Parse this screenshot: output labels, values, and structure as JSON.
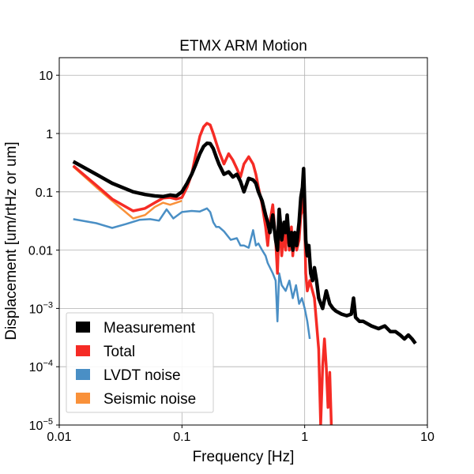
{
  "chart_data": {
    "type": "line",
    "title": "ETMX ARM Motion",
    "xlabel": "Frequency [Hz]",
    "ylabel": "Displacement [um/rtHz or um]",
    "xscale": "log",
    "yscale": "log",
    "xlim": [
      0.01,
      10
    ],
    "ylim": [
      1e-05,
      20
    ],
    "grid": true,
    "legend_position": "lower-left",
    "x_ticks": [
      {
        "value": 0.01,
        "label": "0.01"
      },
      {
        "value": 0.1,
        "label": "0.1"
      },
      {
        "value": 1,
        "label": "1"
      },
      {
        "value": 10,
        "label": "10"
      }
    ],
    "y_ticks": [
      {
        "value": 1e-05,
        "label": "10",
        "exp": "−5"
      },
      {
        "value": 0.0001,
        "label": "10",
        "exp": "−4"
      },
      {
        "value": 0.001,
        "label": "10",
        "exp": "−3"
      },
      {
        "value": 0.01,
        "label": "0.01"
      },
      {
        "value": 0.1,
        "label": "0.1"
      },
      {
        "value": 1,
        "label": "1"
      },
      {
        "value": 10,
        "label": "10"
      }
    ],
    "series": [
      {
        "name": "Measurement",
        "color": "#000000",
        "width": 4.5,
        "x": [
          0.013,
          0.02,
          0.027,
          0.04,
          0.05,
          0.06,
          0.07,
          0.08,
          0.09,
          0.1,
          0.11,
          0.12,
          0.13,
          0.14,
          0.15,
          0.16,
          0.17,
          0.18,
          0.19,
          0.2,
          0.22,
          0.24,
          0.26,
          0.28,
          0.3,
          0.32,
          0.35,
          0.38,
          0.4,
          0.42,
          0.45,
          0.48,
          0.5,
          0.52,
          0.55,
          0.58,
          0.6,
          0.62,
          0.65,
          0.68,
          0.7,
          0.72,
          0.75,
          0.78,
          0.8,
          0.83,
          0.86,
          0.9,
          0.93,
          0.96,
          0.98,
          1.0,
          1.02,
          1.05,
          1.08,
          1.12,
          1.16,
          1.2,
          1.25,
          1.3,
          1.4,
          1.5,
          1.6,
          1.7,
          1.8,
          2.0,
          2.2,
          2.4,
          2.5,
          2.6,
          2.8,
          3.0,
          3.5,
          4.0,
          4.5,
          5.0,
          5.5,
          6.0,
          6.5,
          7.0,
          7.5,
          8.0
        ],
        "y": [
          0.33,
          0.2,
          0.14,
          0.1,
          0.09,
          0.085,
          0.083,
          0.088,
          0.085,
          0.1,
          0.14,
          0.2,
          0.3,
          0.45,
          0.6,
          0.68,
          0.67,
          0.55,
          0.4,
          0.3,
          0.2,
          0.22,
          0.18,
          0.2,
          0.15,
          0.1,
          0.17,
          0.16,
          0.14,
          0.1,
          0.07,
          0.04,
          0.03,
          0.02,
          0.04,
          0.015,
          0.01,
          0.05,
          0.015,
          0.03,
          0.02,
          0.04,
          0.012,
          0.02,
          0.01,
          0.02,
          0.012,
          0.03,
          0.08,
          0.12,
          0.25,
          0.06,
          0.015,
          0.008,
          0.012,
          0.004,
          0.003,
          0.005,
          0.003,
          0.0015,
          0.001,
          0.002,
          0.0012,
          0.001,
          0.0009,
          0.0008,
          0.00075,
          0.0008,
          0.0015,
          0.0007,
          0.0006,
          0.0006,
          0.0005,
          0.00045,
          0.0005,
          0.0004,
          0.0004,
          0.00035,
          0.0003,
          0.00035,
          0.0003,
          0.00025
        ]
      },
      {
        "name": "Total",
        "color": "#f52b25",
        "width": 3.5,
        "x": [
          0.013,
          0.02,
          0.027,
          0.04,
          0.05,
          0.06,
          0.07,
          0.08,
          0.09,
          0.1,
          0.11,
          0.12,
          0.13,
          0.14,
          0.15,
          0.16,
          0.17,
          0.18,
          0.19,
          0.2,
          0.22,
          0.24,
          0.26,
          0.28,
          0.3,
          0.32,
          0.35,
          0.38,
          0.4,
          0.42,
          0.45,
          0.48,
          0.5,
          0.52,
          0.55,
          0.58,
          0.6,
          0.62,
          0.65,
          0.68,
          0.7,
          0.72,
          0.75,
          0.78,
          0.8,
          0.83,
          0.86,
          0.9,
          0.93,
          0.96,
          0.98,
          1.0,
          1.02,
          1.05,
          1.1,
          1.2,
          1.3,
          1.35,
          1.4,
          1.45,
          1.5,
          1.55,
          1.6,
          1.65
        ],
        "y": [
          0.28,
          0.13,
          0.075,
          0.047,
          0.052,
          0.065,
          0.078,
          0.08,
          0.075,
          0.08,
          0.12,
          0.2,
          0.45,
          0.9,
          1.3,
          1.5,
          1.4,
          1.0,
          0.7,
          0.5,
          0.3,
          0.45,
          0.35,
          0.25,
          0.18,
          0.3,
          0.4,
          0.3,
          0.2,
          0.12,
          0.06,
          0.025,
          0.012,
          0.03,
          0.06,
          0.015,
          0.004,
          0.03,
          0.008,
          0.02,
          0.01,
          0.03,
          0.01,
          0.025,
          0.008,
          0.02,
          0.01,
          0.015,
          0.04,
          0.05,
          0.08,
          0.03,
          0.004,
          0.002,
          0.003,
          0.0015,
          0.0002,
          1e-05,
          0.0001,
          0.0003,
          0.0001,
          2e-05,
          8e-05,
          1e-05
        ]
      },
      {
        "name": "LVDT noise",
        "color": "#4a8fc5",
        "width": 2.5,
        "x": [
          0.013,
          0.02,
          0.027,
          0.035,
          0.045,
          0.055,
          0.065,
          0.075,
          0.085,
          0.1,
          0.12,
          0.14,
          0.16,
          0.17,
          0.18,
          0.19,
          0.2,
          0.22,
          0.25,
          0.28,
          0.3,
          0.32,
          0.35,
          0.38,
          0.4,
          0.42,
          0.45,
          0.48,
          0.5,
          0.55,
          0.58,
          0.6,
          0.62,
          0.65,
          0.7,
          0.75,
          0.8,
          0.85,
          0.9,
          0.95,
          1.0,
          1.05,
          1.1
        ],
        "y": [
          0.034,
          0.029,
          0.024,
          0.028,
          0.033,
          0.034,
          0.032,
          0.05,
          0.035,
          0.045,
          0.047,
          0.046,
          0.052,
          0.045,
          0.03,
          0.025,
          0.025,
          0.021,
          0.015,
          0.016,
          0.012,
          0.012,
          0.011,
          0.022,
          0.012,
          0.013,
          0.01,
          0.008,
          0.006,
          0.004,
          0.003,
          0.0006,
          0.004,
          0.0025,
          0.002,
          0.003,
          0.0015,
          0.0025,
          0.0012,
          0.0015,
          0.001,
          0.0006,
          0.0003
        ]
      },
      {
        "name": "Seismic noise",
        "color": "#f9913a",
        "width": 2.5,
        "x": [
          0.013,
          0.02,
          0.027,
          0.04,
          0.05,
          0.06,
          0.07,
          0.08,
          0.09,
          0.1
        ],
        "y": [
          0.27,
          0.12,
          0.07,
          0.035,
          0.04,
          0.055,
          0.065,
          0.06,
          0.065,
          0.07
        ]
      }
    ]
  }
}
